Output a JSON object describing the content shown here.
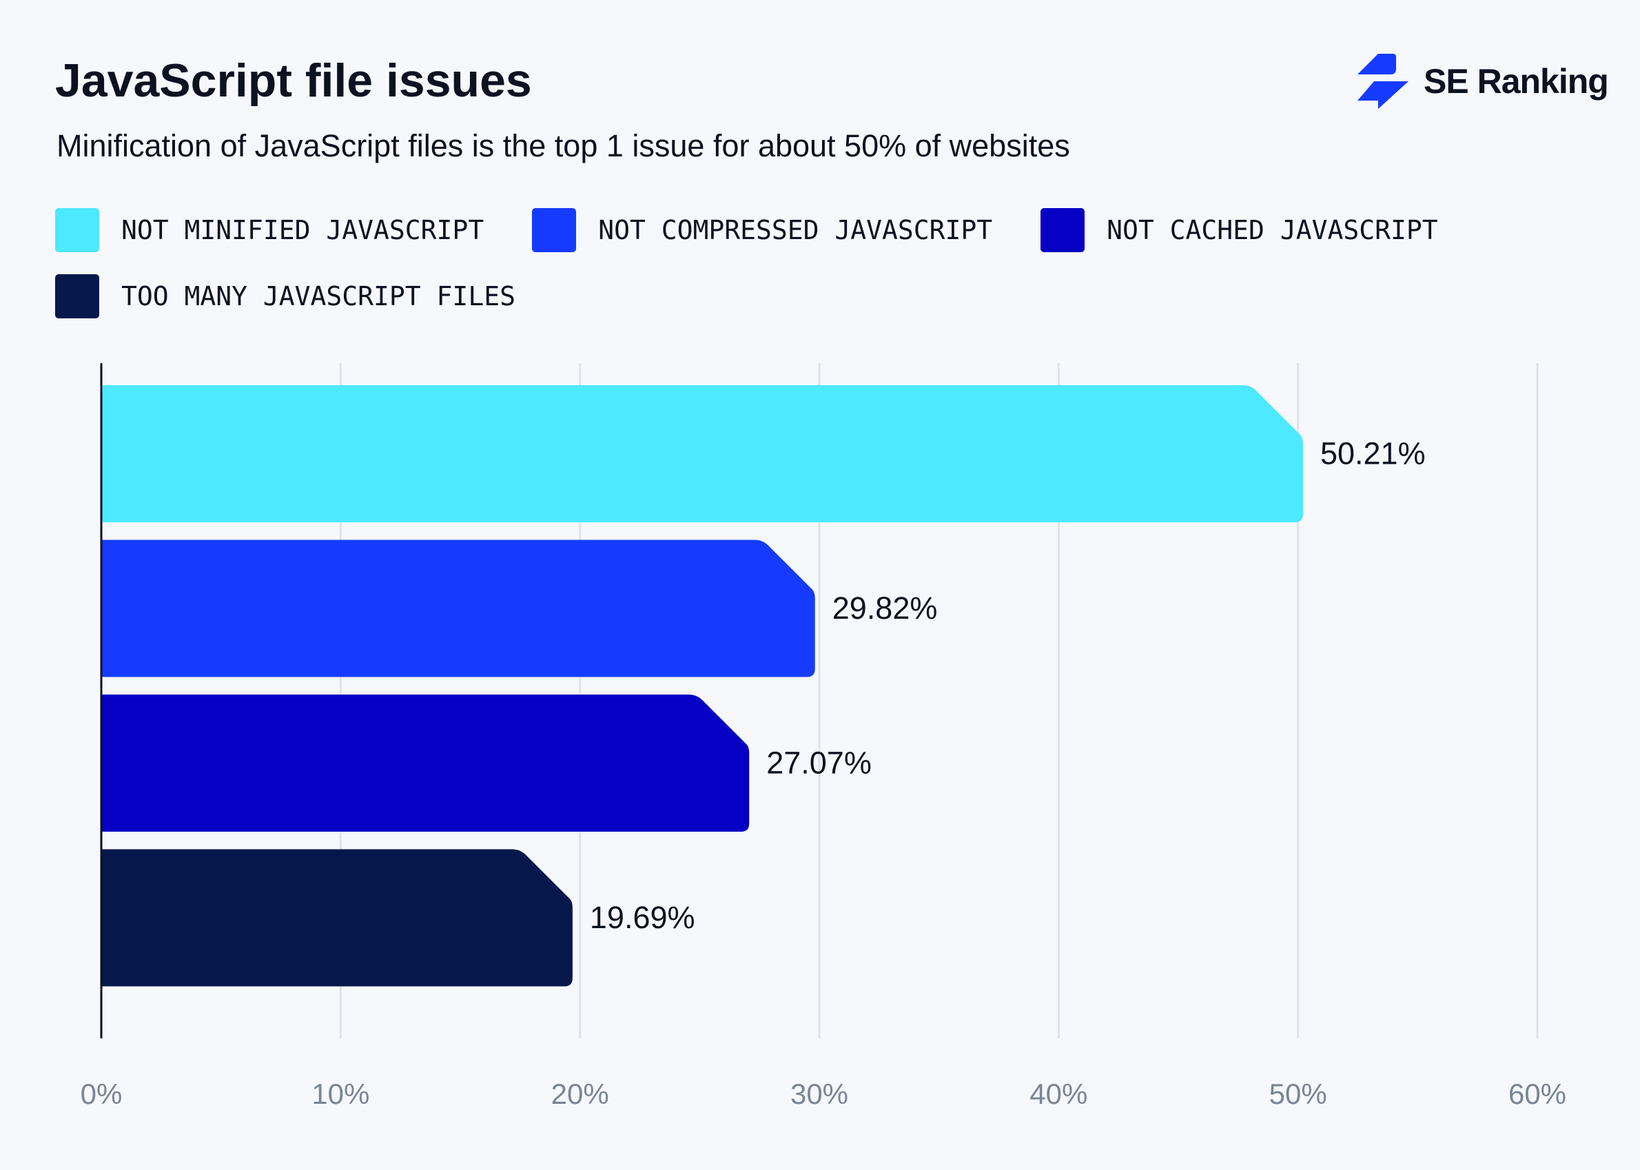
{
  "title": "JavaScript file issues",
  "subtitle": "Minification of JavaScript files is the top 1 issue for about 50% of websites",
  "logo": {
    "text": "SE Ranking",
    "color": "#163bff"
  },
  "chart_data": {
    "type": "bar",
    "orientation": "horizontal",
    "categories": [
      "NOT MINIFIED JAVASCRIPT",
      "NOT COMPRESSED JAVASCRIPT",
      "NOT CACHED JAVASCRIPT",
      "TOO MANY JAVASCRIPT FILES"
    ],
    "values": [
      50.21,
      29.82,
      27.07,
      19.69
    ],
    "data_labels": [
      "50.21%",
      "29.82%",
      "27.07%",
      "19.69%"
    ],
    "colors": [
      "#4de9ff",
      "#163bff",
      "#0500c4",
      "#06184b"
    ],
    "xlim": [
      0,
      60
    ],
    "xticks": [
      0,
      10,
      20,
      30,
      40,
      50,
      60
    ],
    "xtick_labels": [
      "0%",
      "10%",
      "20%",
      "30%",
      "40%",
      "50%",
      "60%"
    ],
    "grid": "vertical",
    "legend_placement": "top-left"
  }
}
